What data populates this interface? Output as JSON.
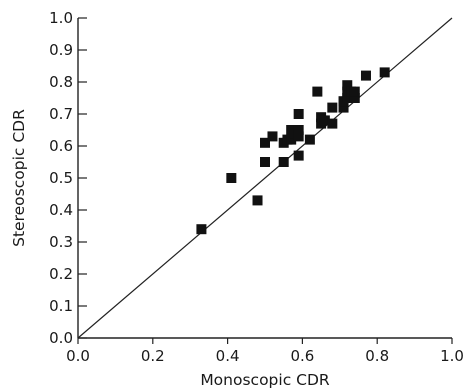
{
  "chart_data": {
    "type": "scatter",
    "title": "",
    "xlabel": "Monoscopic CDR",
    "ylabel": "Stereoscopic CDR",
    "xlim": [
      0.0,
      1.0
    ],
    "ylim": [
      0.0,
      1.0
    ],
    "xticks": [
      "0.0",
      "0.2",
      "0.4",
      "0.6",
      "0.8",
      "1.0"
    ],
    "yticks": [
      "0.0",
      "0.1",
      "0.2",
      "0.3",
      "0.4",
      "0.5",
      "0.6",
      "0.7",
      "0.8",
      "0.9",
      "1.0"
    ],
    "grid": false,
    "reference_line": {
      "type": "identity",
      "from": [
        0.0,
        0.0
      ],
      "to": [
        1.0,
        1.0
      ]
    },
    "marker": "square",
    "color": "#111111",
    "points": [
      {
        "x": 0.33,
        "y": 0.34
      },
      {
        "x": 0.41,
        "y": 0.5
      },
      {
        "x": 0.48,
        "y": 0.43
      },
      {
        "x": 0.5,
        "y": 0.55
      },
      {
        "x": 0.5,
        "y": 0.61
      },
      {
        "x": 0.52,
        "y": 0.63
      },
      {
        "x": 0.55,
        "y": 0.55
      },
      {
        "x": 0.55,
        "y": 0.61
      },
      {
        "x": 0.56,
        "y": 0.62
      },
      {
        "x": 0.57,
        "y": 0.62
      },
      {
        "x": 0.57,
        "y": 0.65
      },
      {
        "x": 0.58,
        "y": 0.64
      },
      {
        "x": 0.59,
        "y": 0.57
      },
      {
        "x": 0.59,
        "y": 0.63
      },
      {
        "x": 0.59,
        "y": 0.65
      },
      {
        "x": 0.59,
        "y": 0.7
      },
      {
        "x": 0.62,
        "y": 0.62
      },
      {
        "x": 0.64,
        "y": 0.77
      },
      {
        "x": 0.65,
        "y": 0.67
      },
      {
        "x": 0.65,
        "y": 0.69
      },
      {
        "x": 0.66,
        "y": 0.68
      },
      {
        "x": 0.68,
        "y": 0.67
      },
      {
        "x": 0.68,
        "y": 0.72
      },
      {
        "x": 0.71,
        "y": 0.72
      },
      {
        "x": 0.71,
        "y": 0.74
      },
      {
        "x": 0.72,
        "y": 0.75
      },
      {
        "x": 0.72,
        "y": 0.77
      },
      {
        "x": 0.72,
        "y": 0.79
      },
      {
        "x": 0.73,
        "y": 0.77
      },
      {
        "x": 0.74,
        "y": 0.75
      },
      {
        "x": 0.74,
        "y": 0.77
      },
      {
        "x": 0.77,
        "y": 0.82
      },
      {
        "x": 0.82,
        "y": 0.83
      }
    ]
  }
}
